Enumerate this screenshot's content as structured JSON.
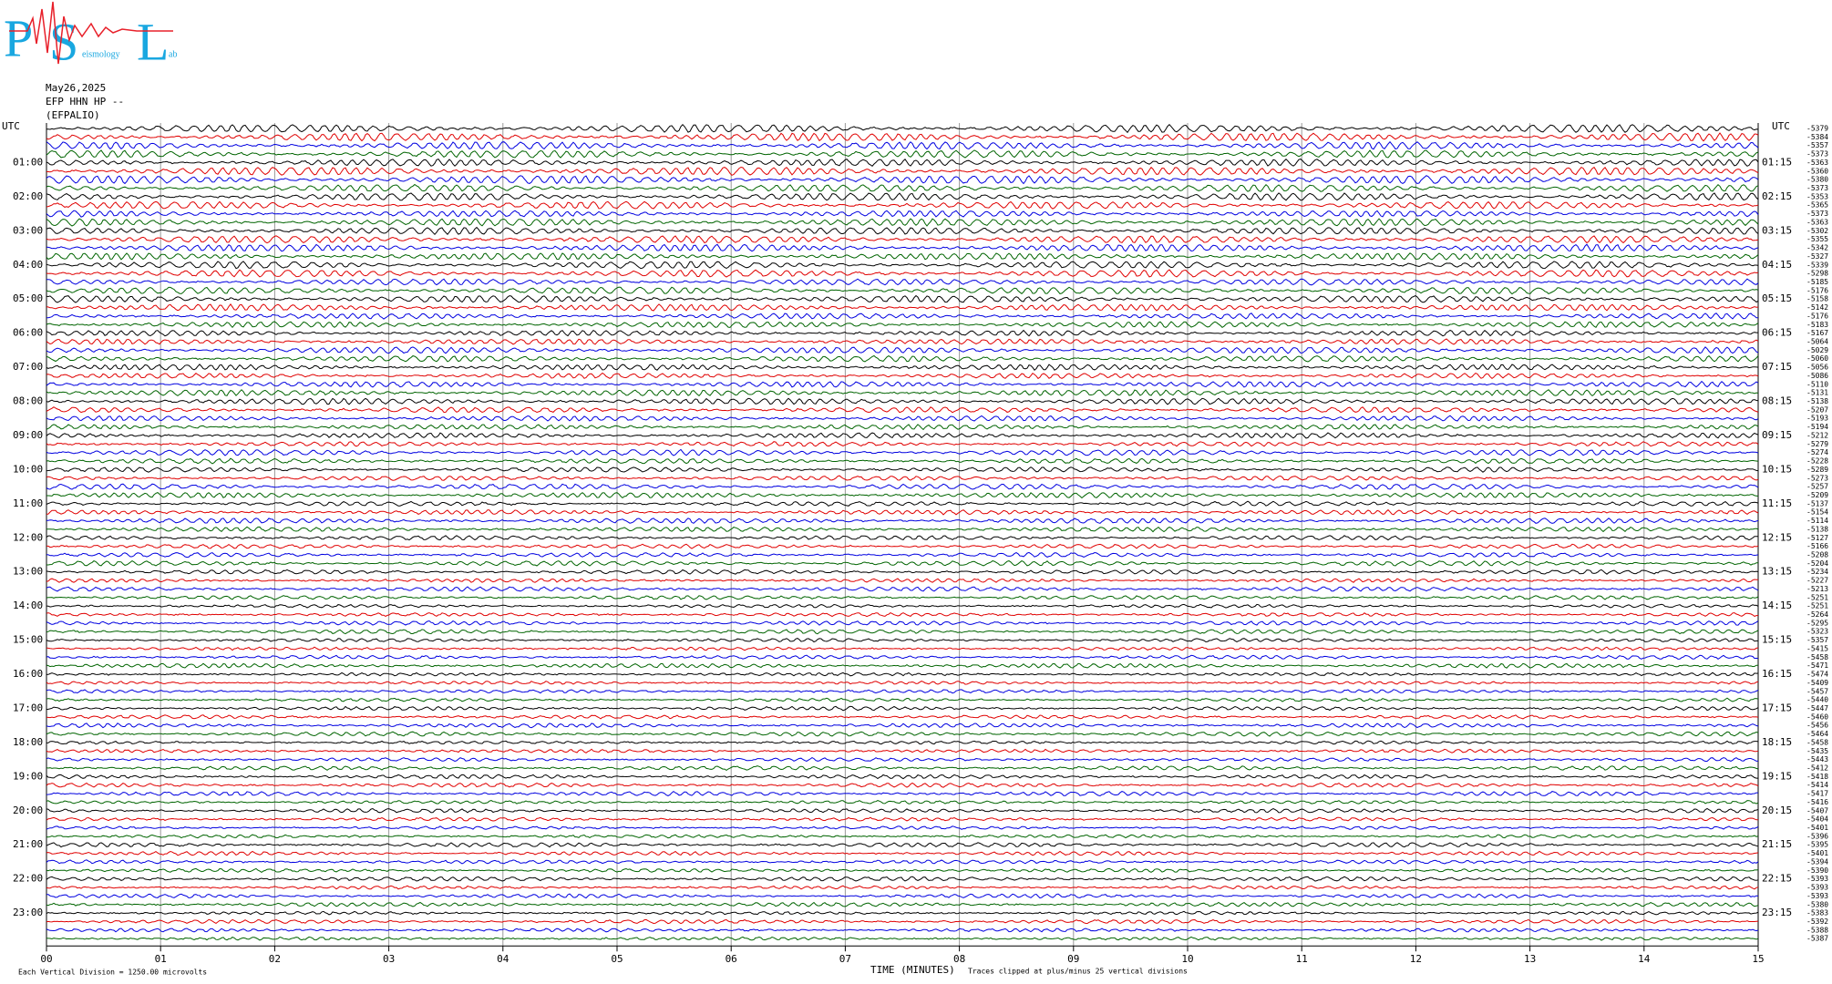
{
  "logo": {
    "p": "P",
    "s": "S",
    "l": "L",
    "seismology": "eismology",
    "lab": "ab"
  },
  "header": {
    "date": "May26,2025",
    "station": "EFP HHN HP --",
    "site": "(EFPALIO)"
  },
  "left_labels": [
    "UTC",
    "01:00",
    "02:00",
    "03:00",
    "04:00",
    "05:00",
    "06:00",
    "07:00",
    "08:00",
    "09:00",
    "10:00",
    "11:00",
    "12:00",
    "13:00",
    "14:00",
    "15:00",
    "16:00",
    "17:00",
    "18:00",
    "19:00",
    "20:00",
    "21:00",
    "22:00",
    "23:00"
  ],
  "right_labels": [
    "UTC",
    "01:15",
    "02:15",
    "03:15",
    "04:15",
    "05:15",
    "06:15",
    "07:15",
    "08:15",
    "09:15",
    "10:15",
    "11:15",
    "12:15",
    "13:15",
    "14:15",
    "15:15",
    "16:15",
    "17:15",
    "18:15",
    "19:15",
    "20:15",
    "21:15",
    "22:15",
    "23:15"
  ],
  "trace_offsets": [
    "-5379",
    "-5384",
    "-5357",
    "-5373",
    "-5363",
    "-5360",
    "-5380",
    "-5373",
    "-5353",
    "-5365",
    "-5373",
    "-5363",
    "-5302",
    "-5355",
    "-5342",
    "-5327",
    "-5339",
    "-5298",
    "-5185",
    "-5176",
    "-5158",
    "-5142",
    "-5176",
    "-5183",
    "-5167",
    "-5064",
    "-5029",
    "-5060",
    "-5056",
    "-5086",
    "-5110",
    "-5131",
    "-5138",
    "-5207",
    "-5193",
    "-5194",
    "-5212",
    "-5279",
    "-5274",
    "-5228",
    "-5289",
    "-5273",
    "-5257",
    "-5209",
    "-5137",
    "-5154",
    "-5114",
    "-5138",
    "-5127",
    "-5166",
    "-5208",
    "-5204",
    "-5234",
    "-5227",
    "-5213",
    "-5251",
    "-5251",
    "-5264",
    "-5295",
    "-5323",
    "-5357",
    "-5415",
    "-5458",
    "-5471",
    "-5474",
    "-5409",
    "-5457",
    "-5440",
    "-5447",
    "-5460",
    "-5456",
    "-5464",
    "-5458",
    "-5435",
    "-5443",
    "-5412",
    "-5418",
    "-5414",
    "-5417",
    "-5416",
    "-5407",
    "-5404",
    "-5401",
    "-5396",
    "-5395",
    "-5401",
    "-5394",
    "-5390",
    "-5393",
    "-5393",
    "-5393",
    "-5380",
    "-5383",
    "-5392",
    "-5388",
    "-5387"
  ],
  "x_labels": [
    "00",
    "01",
    "02",
    "03",
    "04",
    "05",
    "06",
    "07",
    "08",
    "09",
    "10",
    "11",
    "12",
    "13",
    "14",
    "15"
  ],
  "footer": {
    "axis_title": "TIME (MINUTES)",
    "clip_note": "Traces clipped at plus/minus 25 vertical divisions",
    "scale_note": "Each Vertical Division = 1250.00 microvolts"
  }
}
